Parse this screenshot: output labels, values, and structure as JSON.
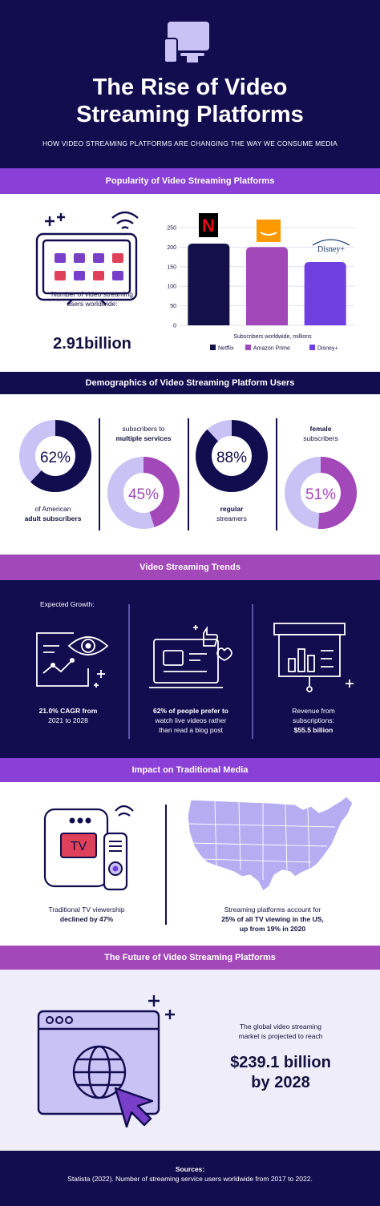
{
  "header": {
    "title_line1": "The Rise of Video",
    "title_line2": "Streaming Platforms",
    "subtitle": "HOW VIDEO STREAMING PLATFORMS ARE CHANGING THE WAY WE CONSUME MEDIA"
  },
  "popularity": {
    "heading": "Popularity of Video Streaming Platforms",
    "users_label_line1": "Number of video streaming",
    "users_label_line2": "users worldwide:",
    "users_value": "2.91billion",
    "logo_netflix": "N",
    "logo_disney": "Disney+"
  },
  "chart_data": {
    "type": "bar",
    "categories": [
      "Netflix",
      "Amazon Prime",
      "Disney+"
    ],
    "values": [
      209,
      200,
      162
    ],
    "ylim": [
      0,
      250
    ],
    "yticks": [
      "0",
      "50",
      "100",
      "150",
      "200",
      "250"
    ],
    "xlabel": "Subscribers worldwide, millions",
    "legend": [
      "Netflix",
      "Amazon Prime",
      "Disney+"
    ],
    "colors": [
      "#14114a",
      "#a348b9",
      "#6f3fe0"
    ],
    "legend_position": "bottom"
  },
  "demographics": {
    "heading": "Demographics of Video Streaming Platform Users",
    "stat1_value": "62%",
    "stat1_line1": "of American",
    "stat1_line2": "adult subscribers",
    "stat1_fraction": 0.62,
    "stat2_value": "45%",
    "stat2_line1": "subscribers to",
    "stat2_line2": "multiple services",
    "stat2_fraction": 0.45,
    "stat3_value": "88%",
    "stat3_line1": "regular",
    "stat3_line2": "streamers",
    "stat3_fraction": 0.88,
    "stat4_value": "51%",
    "stat4_line1": "female",
    "stat4_line2": "subscribers",
    "stat4_fraction": 0.51
  },
  "trends": {
    "heading": "Video Streaming Trends",
    "expected_growth": "Expected Growth:",
    "t1_line1": "21.0% CAGR from",
    "t1_line2": "2021 to 2028",
    "t2_line1": "62% of people prefer to",
    "t2_line2": "watch live videos rather",
    "t2_line3": "than read a blog post",
    "t3_line1": "Revenue from",
    "t3_line2": "subscriptions:",
    "t3_line3": "$55.5 billion"
  },
  "impact": {
    "heading": "Impact on Traditional Media",
    "tv_label": "TV",
    "left_line1": "Traditional TV viewership",
    "left_line2": "declined by 47%",
    "right_line1": "Streaming platforms account for",
    "right_line2": "25% of all TV viewing in the US,",
    "right_line3": "up from 19% in 2020"
  },
  "future": {
    "heading": "The Future of Video Streaming Platforms",
    "line1": "The global video streaming",
    "line2": "market is projected to reach",
    "value_line1": "$239.1 billion",
    "value_line2": "by 2028"
  },
  "footer": {
    "sources_label": "Sources:",
    "sources_text": "Statista (2022). Number of streaming service users worldwide from 2017 to 2022."
  },
  "colors": {
    "navy": "#110d4f",
    "purple": "#8a3fd6",
    "lavender": "#c9c3f5",
    "magenta": "#a348b9"
  }
}
